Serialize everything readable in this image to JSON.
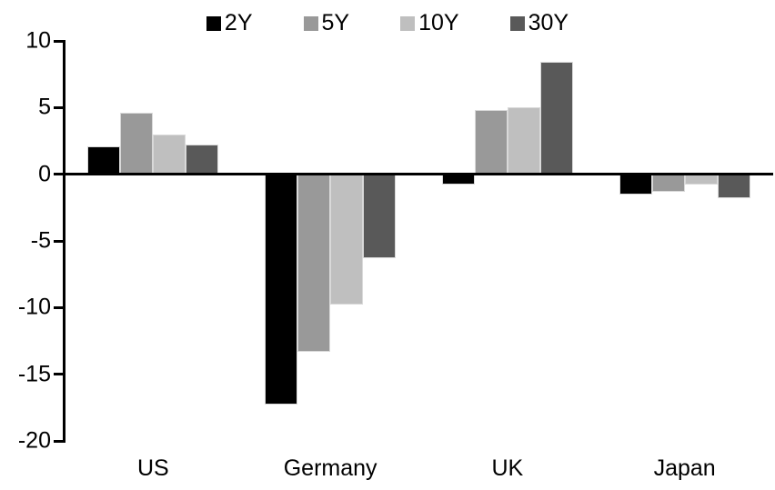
{
  "chart_data": {
    "type": "bar",
    "title": "",
    "categories": [
      "US",
      "Germany",
      "UK",
      "Japan"
    ],
    "series": [
      {
        "name": "2Y",
        "color": "#000000",
        "values": [
          2.1,
          -17.3,
          -0.8,
          -1.5
        ]
      },
      {
        "name": "5Y",
        "color": "#999999",
        "values": [
          4.6,
          -13.3,
          4.8,
          -1.3
        ]
      },
      {
        "name": "10Y",
        "color": "#bfbfbf",
        "values": [
          3.0,
          -9.8,
          5.0,
          -0.8
        ]
      },
      {
        "name": "30Y",
        "color": "#595959",
        "values": [
          2.2,
          -6.3,
          8.4,
          -1.8
        ]
      }
    ],
    "ylim": [
      -20,
      10
    ],
    "y_ticks": [
      10,
      5,
      0,
      -5,
      -10,
      -15,
      -20
    ],
    "xlabel": "",
    "ylabel": "",
    "legend_position": "top",
    "grid": false,
    "axis_color": "#000000",
    "background_color": "#ffffff"
  }
}
